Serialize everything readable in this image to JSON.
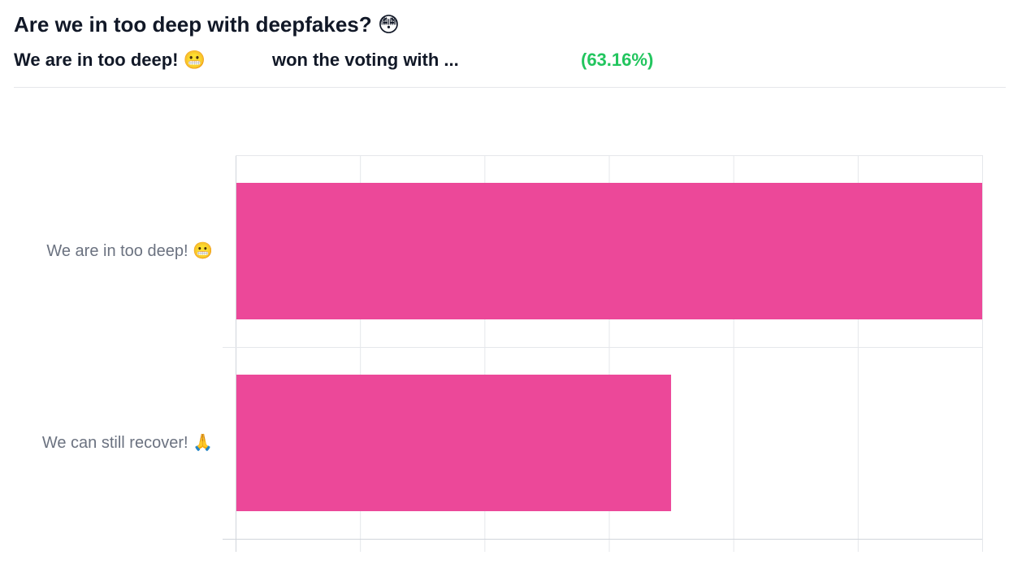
{
  "poll": {
    "title": "Are we in too deep with deepfakes? 😳",
    "winner": "We are in too deep! 😬",
    "won_text": "won the voting with ...",
    "percent": "(63.16%)",
    "percent_color": "#22c55e"
  },
  "chart_data": {
    "type": "bar",
    "orientation": "horizontal",
    "categories": [
      "We are in too deep! 😬",
      "We can still recover! 🙏"
    ],
    "values": [
      63.16,
      36.84
    ],
    "xlim": [
      0,
      63.16
    ],
    "bar_color": "#ec4899",
    "grid": true,
    "legend": "none",
    "title": "",
    "xlabel": "",
    "ylabel": ""
  }
}
